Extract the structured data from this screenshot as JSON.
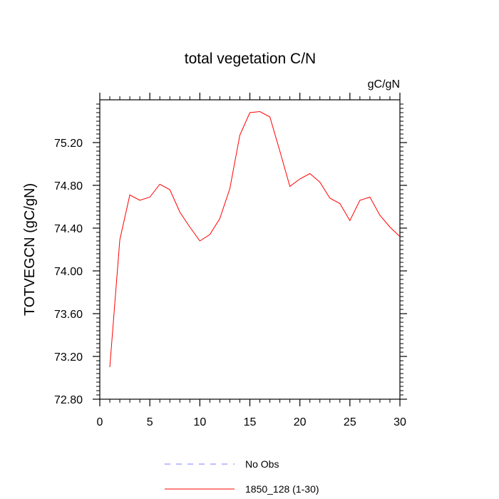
{
  "chart_data": {
    "type": "line",
    "title": "total vegetation C/N",
    "units_label": "gC/gN",
    "ylabel": "TOTVEGCN  (gC/gN)",
    "xlabel": "",
    "xlim": [
      0,
      30
    ],
    "ylim": [
      72.8,
      75.6
    ],
    "x_ticks": [
      0,
      5,
      10,
      15,
      20,
      25,
      30
    ],
    "x_tick_labels": [
      "0",
      "5",
      "10",
      "15",
      "20",
      "25",
      "30"
    ],
    "y_ticks": [
      72.8,
      73.2,
      73.6,
      74.0,
      74.4,
      74.8,
      75.2
    ],
    "y_tick_labels": [
      "72.80",
      "73.20",
      "73.60",
      "74.00",
      "74.40",
      "74.80",
      "75.20"
    ],
    "grid": false,
    "legend_position": "bottom",
    "series": [
      {
        "name": "No Obs",
        "color": "#8080ff",
        "dash": "dashed",
        "x": [],
        "y": []
      },
      {
        "name": "1850_128 (1-30)",
        "color": "#ff0000",
        "dash": "solid",
        "x": [
          1,
          2,
          3,
          4,
          5,
          6,
          7,
          8,
          9,
          10,
          11,
          12,
          13,
          14,
          15,
          16,
          17,
          18,
          19,
          20,
          21,
          22,
          23,
          24,
          25,
          26,
          27,
          28,
          29,
          30
        ],
        "y": [
          73.1,
          74.29,
          74.71,
          74.66,
          74.69,
          74.81,
          74.76,
          74.55,
          74.41,
          74.28,
          74.34,
          74.49,
          74.77,
          75.27,
          75.48,
          75.49,
          75.44,
          75.12,
          74.79,
          74.86,
          74.91,
          74.83,
          74.68,
          74.63,
          74.47,
          74.66,
          74.69,
          74.52,
          74.41,
          74.32
        ]
      }
    ]
  }
}
